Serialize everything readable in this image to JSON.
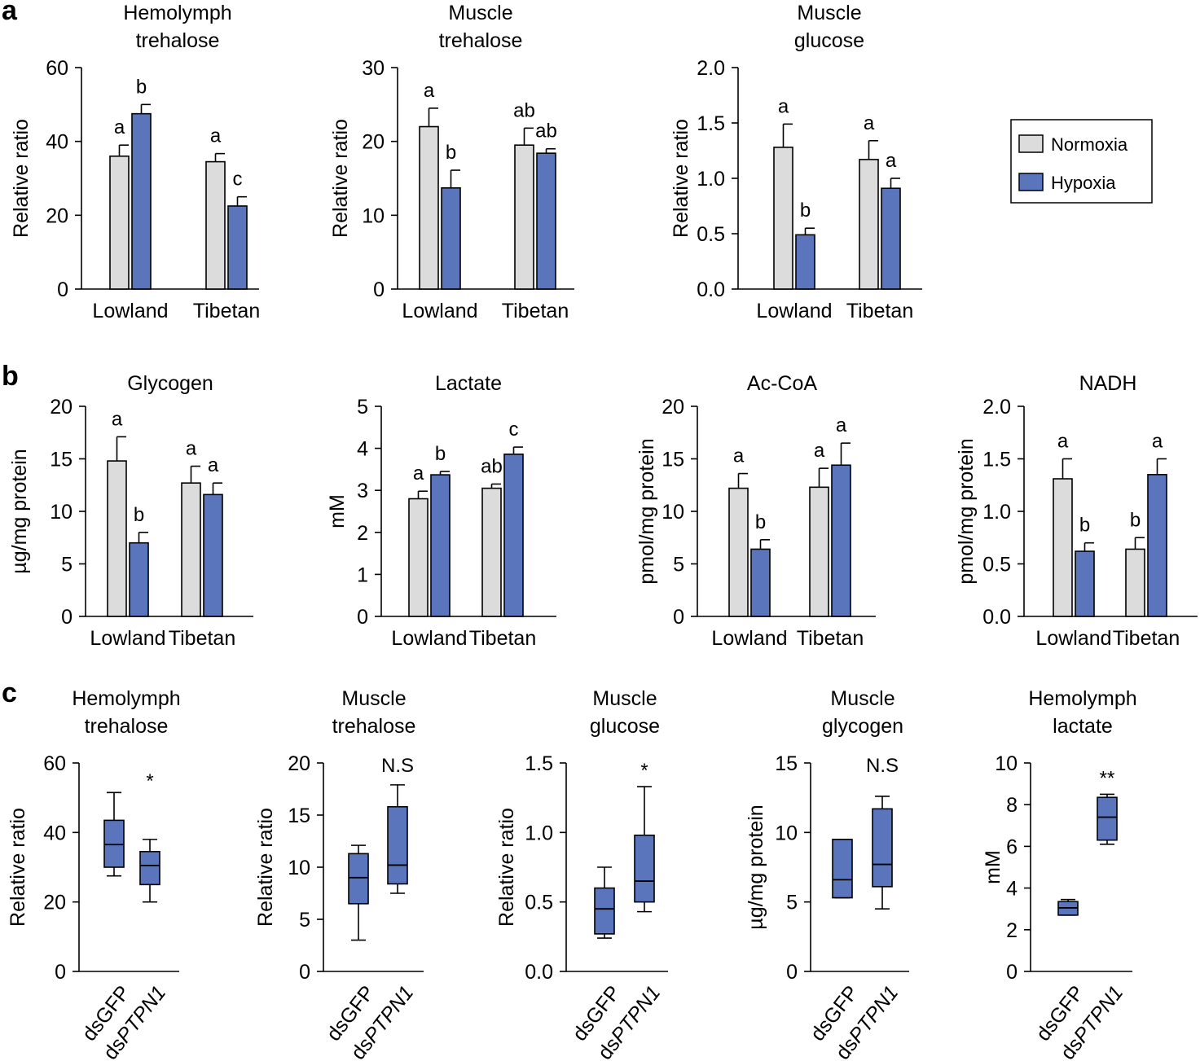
{
  "panel_labels": {
    "a": "a",
    "b": "b",
    "c": "c"
  },
  "colors": {
    "normoxia": "#dcdcdc",
    "hypoxia": "#5b75bd",
    "stroke": "#000000"
  },
  "legend": {
    "normoxia": "Normoxia",
    "hypoxia": "Hypoxia"
  },
  "chart_data": [
    {
      "id": "a1",
      "type": "bar",
      "title": [
        "Hemolymph",
        "trehalose"
      ],
      "ylabel": "Relative ratio",
      "ylim": [
        0,
        60
      ],
      "yticks": [
        "0",
        "20",
        "40",
        "60"
      ],
      "categories": [
        "Lowland",
        "Tibetan"
      ],
      "series": [
        {
          "name": "Normoxia",
          "values": [
            36,
            34.5
          ],
          "errors": [
            3,
            2.2
          ],
          "letters": [
            "a",
            "a"
          ]
        },
        {
          "name": "Hypoxia",
          "values": [
            47.5,
            22.5
          ],
          "errors": [
            2.5,
            2.5
          ],
          "letters": [
            "b",
            "c"
          ]
        }
      ]
    },
    {
      "id": "a2",
      "type": "bar",
      "title": [
        "Muscle",
        "trehalose"
      ],
      "ylabel": "Relative ratio",
      "ylim": [
        0,
        30
      ],
      "yticks": [
        "0",
        "10",
        "20",
        "30"
      ],
      "categories": [
        "Lowland",
        "Tibetan"
      ],
      "series": [
        {
          "name": "Normoxia",
          "values": [
            22,
            19.5
          ],
          "errors": [
            2.5,
            2.3
          ],
          "letters": [
            "a",
            "ab"
          ]
        },
        {
          "name": "Hypoxia",
          "values": [
            13.7,
            18.4
          ],
          "errors": [
            2.4,
            0.6
          ],
          "letters": [
            "b",
            "ab"
          ]
        }
      ]
    },
    {
      "id": "a3",
      "type": "bar",
      "title": [
        "Muscle",
        "glucose"
      ],
      "ylabel": "Relative ratio",
      "ylim": [
        0,
        2
      ],
      "yticks": [
        "0.0",
        "0.5",
        "1.0",
        "1.5",
        "2.0"
      ],
      "categories": [
        "Lowland",
        "Tibetan"
      ],
      "series": [
        {
          "name": "Normoxia",
          "values": [
            1.28,
            1.17
          ],
          "errors": [
            0.21,
            0.17
          ],
          "letters": [
            "a",
            "a"
          ]
        },
        {
          "name": "Hypoxia",
          "values": [
            0.49,
            0.91
          ],
          "errors": [
            0.06,
            0.09
          ],
          "letters": [
            "b",
            "a"
          ]
        }
      ]
    },
    {
      "id": "b1",
      "type": "bar",
      "title": [
        "Glycogen"
      ],
      "ylabel": "µg/mg protein",
      "ylim": [
        0,
        20
      ],
      "yticks": [
        "0",
        "5",
        "10",
        "15",
        "20"
      ],
      "categories": [
        "Lowland",
        "Tibetan"
      ],
      "series": [
        {
          "name": "Normoxia",
          "values": [
            14.8,
            12.7
          ],
          "errors": [
            2.3,
            1.6
          ],
          "letters": [
            "a",
            "a"
          ]
        },
        {
          "name": "Hypoxia",
          "values": [
            7,
            11.6
          ],
          "errors": [
            1,
            1.1
          ],
          "letters": [
            "b",
            "a"
          ]
        }
      ]
    },
    {
      "id": "b2",
      "type": "bar",
      "title": [
        "Lactate"
      ],
      "ylabel": "mM",
      "ylim": [
        0,
        5
      ],
      "yticks": [
        "0",
        "1",
        "2",
        "3",
        "4",
        "5"
      ],
      "categories": [
        "Lowland",
        "Tibetan"
      ],
      "series": [
        {
          "name": "Normoxia",
          "values": [
            2.8,
            3.05
          ],
          "errors": [
            0.18,
            0.1
          ],
          "letters": [
            "a",
            "ab"
          ]
        },
        {
          "name": "Hypoxia",
          "values": [
            3.37,
            3.86
          ],
          "errors": [
            0.08,
            0.17
          ],
          "letters": [
            "b",
            "c"
          ]
        }
      ]
    },
    {
      "id": "b3",
      "type": "bar",
      "title": [
        "Ac-CoA"
      ],
      "ylabel": "pmol/mg protein",
      "ylim": [
        0,
        20
      ],
      "yticks": [
        "0",
        "5",
        "10",
        "15",
        "20"
      ],
      "categories": [
        "Lowland",
        "Tibetan"
      ],
      "series": [
        {
          "name": "Normoxia",
          "values": [
            12.2,
            12.3
          ],
          "errors": [
            1.4,
            1.8
          ],
          "letters": [
            "a",
            "a"
          ]
        },
        {
          "name": "Hypoxia",
          "values": [
            6.4,
            14.4
          ],
          "errors": [
            0.9,
            2.1
          ],
          "letters": [
            "b",
            "a"
          ]
        }
      ]
    },
    {
      "id": "b4",
      "type": "bar",
      "title": [
        "NADH"
      ],
      "ylabel": "pmol/mg protein",
      "ylim": [
        0,
        2
      ],
      "yticks": [
        "0.0",
        "0.5",
        "1.0",
        "1.5",
        "2.0"
      ],
      "categories": [
        "Lowland",
        "Tibetan"
      ],
      "series": [
        {
          "name": "Normoxia",
          "values": [
            1.31,
            0.64
          ],
          "errors": [
            0.19,
            0.11
          ],
          "letters": [
            "a",
            "b"
          ]
        },
        {
          "name": "Hypoxia",
          "values": [
            0.62,
            1.35
          ],
          "errors": [
            0.08,
            0.15
          ],
          "letters": [
            "b",
            "a"
          ]
        }
      ]
    },
    {
      "id": "c1",
      "type": "box",
      "title": [
        "Hemolymph",
        "trehalose"
      ],
      "ylabel": "Relative ratio",
      "ylim": [
        0,
        60
      ],
      "yticks": [
        "0",
        "20",
        "40",
        "60"
      ],
      "categories": [
        "dsGFP",
        "dsPTPN1"
      ],
      "boxes": [
        {
          "min": 27.5,
          "q1": 30,
          "median": 36.5,
          "q3": 43.5,
          "max": 51.5
        },
        {
          "min": 20,
          "q1": 25,
          "median": 30.5,
          "q3": 34.5,
          "max": 38
        }
      ],
      "significance": "*"
    },
    {
      "id": "c2",
      "type": "box",
      "title": [
        "Muscle",
        "trehalose"
      ],
      "ylabel": "Relative ratio",
      "ylim": [
        0,
        20
      ],
      "yticks": [
        "0",
        "5",
        "10",
        "15",
        "20"
      ],
      "categories": [
        "dsGFP",
        "dsPTPN1"
      ],
      "boxes": [
        {
          "min": 3,
          "q1": 6.5,
          "median": 9,
          "q3": 11.3,
          "max": 12.1
        },
        {
          "min": 7.5,
          "q1": 8.4,
          "median": 10.2,
          "q3": 15.8,
          "max": 17.9
        }
      ],
      "significance": "N.S"
    },
    {
      "id": "c3",
      "type": "box",
      "title": [
        "Muscle",
        "glucose"
      ],
      "ylabel": "Relative ratio",
      "ylim": [
        0,
        1.5
      ],
      "yticks": [
        "0.0",
        "0.5",
        "1.0",
        "1.5"
      ],
      "categories": [
        "dsGFP",
        "dsPTPN1"
      ],
      "boxes": [
        {
          "min": 0.24,
          "q1": 0.27,
          "median": 0.45,
          "q3": 0.6,
          "max": 0.75
        },
        {
          "min": 0.43,
          "q1": 0.5,
          "median": 0.65,
          "q3": 0.98,
          "max": 1.33
        }
      ],
      "significance": "*"
    },
    {
      "id": "c4",
      "type": "box",
      "title": [
        "Muscle",
        "glycogen"
      ],
      "ylabel": "µg/mg protein",
      "ylim": [
        0,
        15
      ],
      "yticks": [
        "0",
        "5",
        "10",
        "15"
      ],
      "categories": [
        "dsGFP",
        "dsPTPN1"
      ],
      "boxes": [
        {
          "min": 5.3,
          "q1": 5.3,
          "median": 6.6,
          "q3": 9.5,
          "max": 9.5
        },
        {
          "min": 4.5,
          "q1": 6.1,
          "median": 7.7,
          "q3": 11.7,
          "max": 12.6
        }
      ],
      "significance": "N.S"
    },
    {
      "id": "c5",
      "type": "box",
      "title": [
        "Hemolymph",
        "lactate"
      ],
      "ylabel": "mM",
      "ylim": [
        0,
        10
      ],
      "yticks": [
        "0",
        "2",
        "4",
        "6",
        "8",
        "10"
      ],
      "categories": [
        "dsGFP",
        "dsPTPN1"
      ],
      "boxes": [
        {
          "min": 2.7,
          "q1": 2.7,
          "median": 3.05,
          "q3": 3.35,
          "max": 3.45
        },
        {
          "min": 6.1,
          "q1": 6.3,
          "median": 7.4,
          "q3": 8.35,
          "max": 8.5
        }
      ],
      "significance": "**"
    }
  ]
}
